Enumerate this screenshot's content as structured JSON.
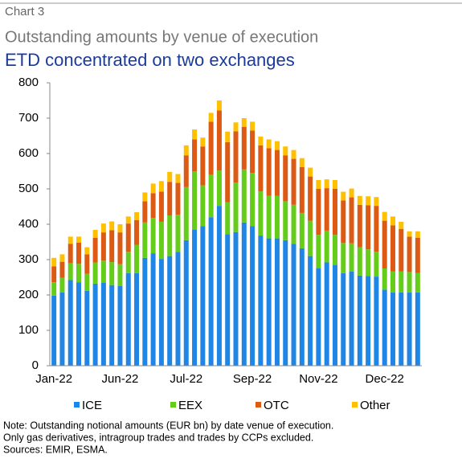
{
  "chart_data": {
    "type": "stacked_bar",
    "label": "Chart 3",
    "title": "Outstanding amounts by venue of execution",
    "subtitle": "ETD concentrated on two exchanges",
    "categories": [
      "Jan-22",
      null,
      null,
      null,
      null,
      null,
      null,
      null,
      "Jun-22",
      null,
      null,
      null,
      null,
      null,
      null,
      null,
      "Jul-22",
      null,
      null,
      null,
      null,
      null,
      null,
      null,
      "Sep-22",
      null,
      null,
      null,
      null,
      null,
      null,
      null,
      "Nov-22",
      null,
      null,
      null,
      null,
      null,
      null,
      null,
      "Dec-22",
      null,
      null,
      null,
      null
    ],
    "series": [
      {
        "name": "ICE",
        "color": "#1f86e6",
        "values": [
          198,
          207,
          242,
          236,
          212,
          232,
          235,
          228,
          225,
          262,
          262,
          305,
          318,
          302,
          310,
          322,
          355,
          385,
          395,
          420,
          452,
          372,
          378,
          405,
          395,
          368,
          360,
          360,
          355,
          345,
          332,
          310,
          275,
          292,
          285,
          262,
          266,
          255,
          254,
          252,
          215,
          207,
          207,
          207,
          207
        ]
      },
      {
        "name": "EEX",
        "color": "#66cc1a",
        "values": [
          38,
          42,
          48,
          52,
          48,
          60,
          62,
          65,
          62,
          60,
          80,
          100,
          100,
          105,
          115,
          105,
          150,
          165,
          115,
          120,
          100,
          90,
          140,
          150,
          150,
          125,
          120,
          120,
          110,
          110,
          100,
          100,
          95,
          90,
          85,
          85,
          80,
          80,
          75,
          70,
          60,
          60,
          60,
          58,
          55
        ]
      },
      {
        "name": "OTC",
        "color": "#dd5a14",
        "values": [
          45,
          45,
          55,
          60,
          55,
          70,
          80,
          90,
          90,
          80,
          70,
          60,
          70,
          85,
          95,
          90,
          90,
          90,
          110,
          150,
          170,
          170,
          145,
          120,
          120,
          130,
          135,
          130,
          130,
          130,
          130,
          125,
          130,
          120,
          130,
          120,
          130,
          120,
          125,
          130,
          135,
          130,
          120,
          100,
          100
        ]
      },
      {
        "name": "Other",
        "color": "#ffc000",
        "values": [
          24,
          21,
          20,
          17,
          20,
          22,
          25,
          25,
          23,
          20,
          22,
          25,
          27,
          30,
          28,
          25,
          28,
          28,
          25,
          25,
          28,
          30,
          25,
          25,
          25,
          25,
          25,
          25,
          25,
          25,
          25,
          25,
          25,
          25,
          25,
          25,
          25,
          25,
          25,
          25,
          25,
          25,
          20,
          15,
          18
        ]
      }
    ],
    "ylim": [
      0,
      800
    ],
    "yticks": [
      0,
      100,
      200,
      300,
      400,
      500,
      600,
      700,
      800
    ],
    "legend": "bottom",
    "notes": [
      "Note: Outstanding notional amounts (EUR bn) by date venue of execution.",
      "Only gas derivatives, intragroup trades and trades by CCPs excluded.",
      "Sources: EMIR, ESMA."
    ]
  }
}
